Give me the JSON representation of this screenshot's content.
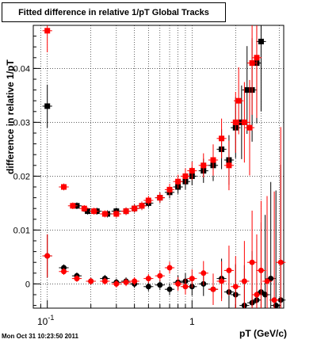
{
  "title": "Fitted difference in relative 1/pT  Global Tracks",
  "timestamp": "Mon Oct 31 10:23:50 2011",
  "chart_data": {
    "type": "scatter",
    "title": "Fitted difference in relative 1/pT  Global Tracks",
    "xlabel": "pT (GeV/c)",
    "ylabel": "difference in relative 1/pT",
    "xscale": "log",
    "xlim": [
      0.08,
      4.3
    ],
    "ylim": [
      -0.0045,
      0.048
    ],
    "grid": true,
    "x_tick_labels": [
      "10^-1",
      "1"
    ],
    "y_ticks": [
      0,
      0.01,
      0.02,
      0.03,
      0.04
    ],
    "y_tick_labels": [
      "0",
      "0.01",
      "0.02",
      "0.03",
      "0.04"
    ],
    "series": [
      {
        "marker": "square",
        "color": "#000000",
        "points": [
          [
            0.1,
            0.033
          ],
          [
            0.13,
            0.018
          ],
          [
            0.16,
            0.0145
          ],
          [
            0.19,
            0.0135
          ],
          [
            0.22,
            0.0135
          ],
          [
            0.26,
            0.013
          ],
          [
            0.3,
            0.0135
          ],
          [
            0.35,
            0.0135
          ],
          [
            0.4,
            0.014
          ],
          [
            0.45,
            0.0145
          ],
          [
            0.5,
            0.015
          ],
          [
            0.6,
            0.016
          ],
          [
            0.7,
            0.017
          ],
          [
            0.8,
            0.018
          ],
          [
            0.9,
            0.019
          ],
          [
            1.0,
            0.02
          ],
          [
            1.2,
            0.021
          ],
          [
            1.4,
            0.022
          ],
          [
            1.6,
            0.025
          ],
          [
            1.8,
            0.023
          ],
          [
            2.0,
            0.029
          ],
          [
            2.2,
            0.03
          ],
          [
            2.4,
            0.036
          ],
          [
            2.6,
            0.036
          ],
          [
            2.8,
            0.041
          ],
          [
            3.0,
            0.045
          ]
        ]
      },
      {
        "marker": "square",
        "color": "#ff0000",
        "points": [
          [
            0.1,
            0.047
          ],
          [
            0.13,
            0.018
          ],
          [
            0.15,
            0.0145
          ],
          [
            0.18,
            0.014
          ],
          [
            0.21,
            0.0135
          ],
          [
            0.25,
            0.013
          ],
          [
            0.3,
            0.013
          ],
          [
            0.35,
            0.0135
          ],
          [
            0.4,
            0.014
          ],
          [
            0.45,
            0.0145
          ],
          [
            0.5,
            0.0155
          ],
          [
            0.6,
            0.016
          ],
          [
            0.7,
            0.0175
          ],
          [
            0.8,
            0.019
          ],
          [
            0.9,
            0.02
          ],
          [
            1.0,
            0.021
          ],
          [
            1.2,
            0.022
          ],
          [
            1.4,
            0.023
          ],
          [
            1.6,
            0.027
          ],
          [
            1.8,
            0.022
          ],
          [
            2.0,
            0.03
          ],
          [
            2.1,
            0.034
          ],
          [
            2.3,
            0.03
          ],
          [
            2.5,
            0.029
          ],
          [
            2.6,
            0.041
          ],
          [
            2.8,
            0.042
          ]
        ]
      },
      {
        "marker": "circle",
        "color": "#000000",
        "points": [
          [
            0.1,
            0.0052
          ],
          [
            0.13,
            0.003
          ],
          [
            0.16,
            0.0015
          ],
          [
            0.2,
            0.0005
          ],
          [
            0.25,
            0.001
          ],
          [
            0.3,
            0.0003
          ],
          [
            0.35,
            0.0005
          ],
          [
            0.4,
            0.0
          ],
          [
            0.5,
            -0.0005
          ],
          [
            0.6,
            -0.0002
          ],
          [
            0.7,
            -0.001
          ],
          [
            0.8,
            0.0003
          ],
          [
            0.9,
            0.0005
          ],
          [
            1.0,
            -0.0005
          ],
          [
            1.2,
            0.0
          ],
          [
            1.4,
            -0.001
          ],
          [
            1.6,
            0.001
          ],
          [
            1.8,
            -0.0015
          ],
          [
            2.0,
            -0.002
          ],
          [
            2.3,
            -0.004
          ],
          [
            2.6,
            -0.0035
          ],
          [
            2.8,
            -0.003
          ],
          [
            3.0,
            -0.0015
          ],
          [
            3.2,
            -0.002
          ],
          [
            3.5,
            0.001
          ],
          [
            3.8,
            -0.004
          ],
          [
            4.1,
            -0.003
          ]
        ]
      },
      {
        "marker": "circle",
        "color": "#ff0000",
        "points": [
          [
            0.1,
            0.0052
          ],
          [
            0.13,
            0.0023
          ],
          [
            0.16,
            0.001
          ],
          [
            0.2,
            0.0005
          ],
          [
            0.25,
            0.0005
          ],
          [
            0.3,
            0.0
          ],
          [
            0.35,
            0.0003
          ],
          [
            0.4,
            0.0005
          ],
          [
            0.5,
            0.001
          ],
          [
            0.6,
            0.0015
          ],
          [
            0.7,
            0.003
          ],
          [
            0.8,
            0.0
          ],
          [
            0.9,
            -0.0005
          ],
          [
            1.0,
            0.001
          ],
          [
            1.2,
            0.002
          ],
          [
            1.4,
            -0.001
          ],
          [
            1.6,
            0.0005
          ],
          [
            1.8,
            0.0025
          ],
          [
            2.0,
            -0.0005
          ],
          [
            2.3,
            0.0005
          ],
          [
            2.6,
            0.004
          ],
          [
            2.8,
            -0.002
          ],
          [
            3.0,
            0.0025
          ],
          [
            3.3,
            0.0005
          ],
          [
            3.7,
            -0.003
          ],
          [
            4.1,
            0.004
          ]
        ]
      }
    ]
  }
}
